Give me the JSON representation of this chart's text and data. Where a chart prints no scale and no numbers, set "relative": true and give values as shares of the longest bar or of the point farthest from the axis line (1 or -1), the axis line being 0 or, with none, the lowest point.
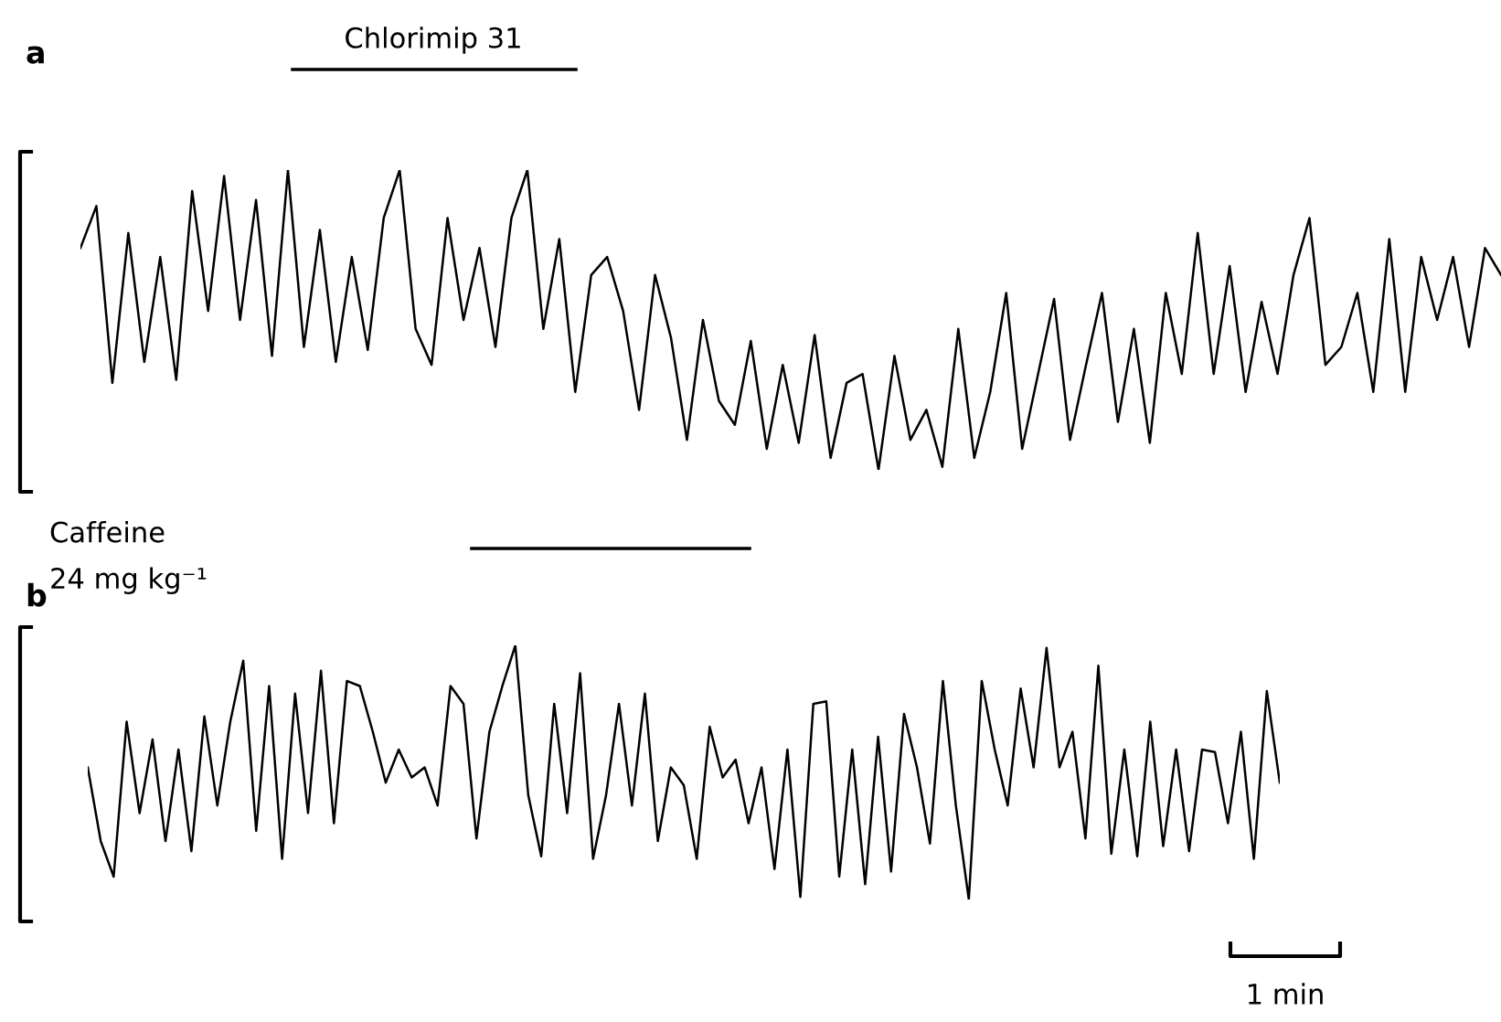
{
  "chart_data": [
    {
      "type": "line",
      "title": "a",
      "relative": true,
      "tick_labels": false,
      "annotations": [
        "Chlorimip 31"
      ],
      "categories": [
        null,
        null,
        null,
        null,
        null,
        null,
        null,
        null,
        null,
        null,
        null,
        null,
        null,
        null,
        null,
        null,
        null,
        null,
        null,
        null,
        null,
        null,
        null,
        null,
        null,
        null,
        null,
        null,
        null,
        null,
        null,
        null,
        null,
        null,
        null,
        null,
        null,
        null,
        null,
        null,
        null,
        null,
        null,
        null,
        null,
        null,
        null,
        null,
        null,
        null,
        null,
        null,
        null,
        null,
        null,
        null,
        null,
        null,
        null,
        null,
        null,
        null,
        null,
        null,
        null,
        null,
        null,
        null,
        null,
        null,
        null,
        null,
        null,
        null,
        null,
        null,
        null,
        null,
        null,
        null,
        null,
        null,
        null,
        null,
        null,
        null,
        null,
        null,
        null,
        null
      ],
      "series": [
        {
          "color": "#000000",
          "values": [
            0.74,
            0.88,
            0.29,
            0.79,
            0.36,
            0.71,
            0.3,
            0.93,
            0.53,
            0.98,
            0.5,
            0.9,
            0.38,
            1.0,
            0.41,
            0.8,
            0.36,
            0.71,
            0.4,
            0.84,
            1.0,
            0.47,
            0.35,
            0.84,
            0.5,
            0.74,
            0.41,
            0.84,
            1.0,
            0.47,
            0.77,
            0.26,
            0.65,
            0.71,
            0.53,
            0.2,
            0.65,
            0.44,
            0.1,
            0.5,
            0.23,
            0.15,
            0.43,
            0.07,
            0.35,
            0.09,
            0.45,
            0.04,
            0.29,
            0.32,
            0.0,
            0.38,
            0.1,
            0.2,
            0.01,
            0.47,
            0.04,
            0.26,
            0.59,
            0.07,
            0.32,
            0.57,
            0.1,
            0.35,
            0.59,
            0.16,
            0.47,
            0.09,
            0.59,
            0.32,
            0.79,
            0.32,
            0.68,
            0.26,
            0.56,
            0.32,
            0.65,
            0.84,
            0.35,
            0.41,
            0.59,
            0.26,
            0.77,
            0.26,
            0.71,
            0.5,
            0.71,
            0.41,
            0.74,
            0.65
          ]
        }
      ]
    },
    {
      "type": "line",
      "title": "b",
      "relative": true,
      "tick_labels": false,
      "annotations": [
        "Caffeine\n24 mg kg⁻¹",
        "1 min"
      ],
      "categories": [
        null,
        null,
        null,
        null,
        null,
        null,
        null,
        null,
        null,
        null,
        null,
        null,
        null,
        null,
        null,
        null,
        null,
        null,
        null,
        null,
        null,
        null,
        null,
        null,
        null,
        null,
        null,
        null,
        null,
        null,
        null,
        null,
        null,
        null,
        null,
        null,
        null,
        null,
        null,
        null,
        null,
        null,
        null,
        null,
        null,
        null,
        null,
        null,
        null,
        null,
        null,
        null,
        null,
        null,
        null,
        null,
        null,
        null,
        null,
        null,
        null,
        null,
        null,
        null,
        null,
        null,
        null,
        null,
        null,
        null,
        null,
        null,
        null,
        null,
        null,
        null,
        null,
        null,
        null,
        null,
        null,
        null,
        null,
        null,
        null,
        null,
        null,
        null,
        null,
        null,
        null,
        null,
        null
      ],
      "series": [
        {
          "color": "#000000",
          "values": [
            0.52,
            0.23,
            0.09,
            0.7,
            0.34,
            0.63,
            0.23,
            0.59,
            0.19,
            0.72,
            0.37,
            0.7,
            0.94,
            0.27,
            0.84,
            0.16,
            0.81,
            0.34,
            0.9,
            0.3,
            0.86,
            0.84,
            0.66,
            0.46,
            0.59,
            0.48,
            0.52,
            0.37,
            0.84,
            0.77,
            0.24,
            0.66,
            0.84,
            1.0,
            0.41,
            0.17,
            0.77,
            0.34,
            0.89,
            0.16,
            0.41,
            0.77,
            0.37,
            0.81,
            0.23,
            0.52,
            0.45,
            0.16,
            0.68,
            0.48,
            0.55,
            0.3,
            0.52,
            0.12,
            0.59,
            0.01,
            0.77,
            0.78,
            0.09,
            0.59,
            0.06,
            0.64,
            0.11,
            0.73,
            0.52,
            0.22,
            0.86,
            0.37,
            0.0,
            0.86,
            0.59,
            0.37,
            0.83,
            0.52,
            0.99,
            0.52,
            0.66,
            0.24,
            0.92,
            0.18,
            0.59,
            0.17,
            0.7,
            0.21,
            0.59,
            0.19,
            0.59,
            0.58,
            0.3,
            0.66,
            0.16,
            0.82,
            0.46
          ]
        }
      ]
    }
  ]
}
